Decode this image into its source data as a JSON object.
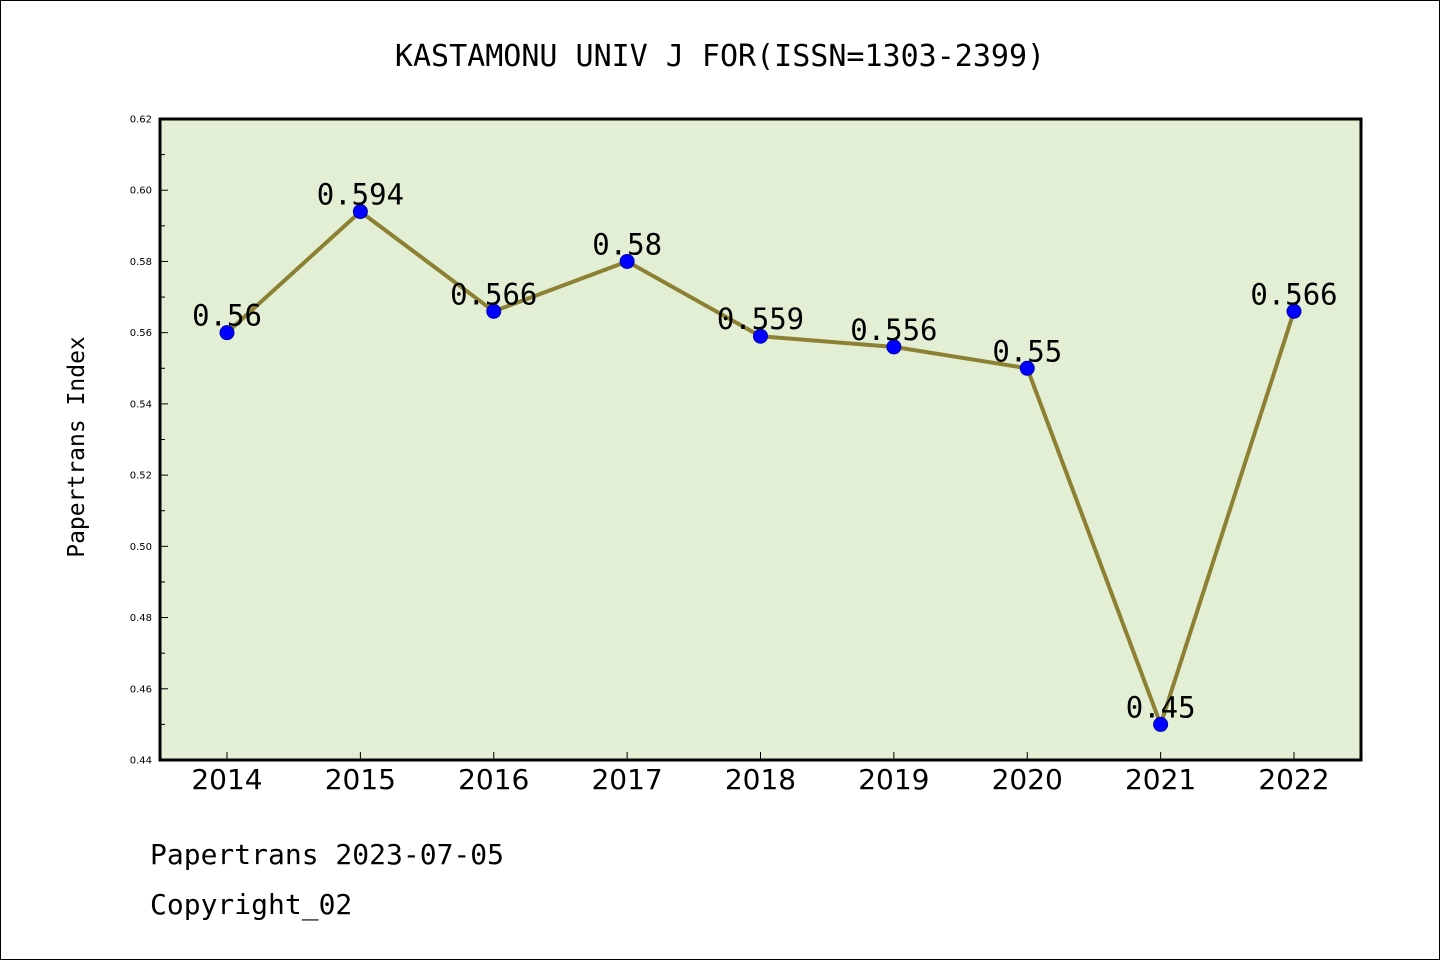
{
  "chart_data": {
    "type": "line",
    "title": "KASTAMONU UNIV J FOR(ISSN=1303-2399)",
    "xlabel": "",
    "ylabel": "Papertrans Index",
    "categories": [
      "2014",
      "2015",
      "2016",
      "2017",
      "2018",
      "2019",
      "2020",
      "2021",
      "2022"
    ],
    "series": [
      {
        "values": [
          0.56,
          0.594,
          0.566,
          0.58,
          0.559,
          0.556,
          0.55,
          0.45,
          0.566
        ],
        "labels": [
          "0.56",
          "0.594",
          "0.566",
          "0.58",
          "0.559",
          "0.556",
          "0.55",
          "0.45",
          "0.566"
        ]
      }
    ],
    "ylim": [
      0.44,
      0.62
    ],
    "yticks": [
      "0.44",
      "0.46",
      "0.48",
      "0.50",
      "0.52",
      "0.54",
      "0.56",
      "0.58",
      "0.60",
      "0.62"
    ],
    "grid": false,
    "colors": {
      "line": "#8c8032",
      "marker": "#0000ff",
      "plot_background": "#e2efd5",
      "border": "#000000"
    }
  },
  "footer": {
    "line1": "Papertrans 2023-07-05",
    "line2": "Copyright_02"
  }
}
